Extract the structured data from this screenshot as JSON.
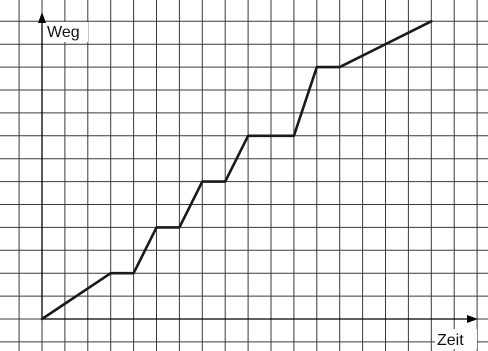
{
  "chart_data": {
    "type": "line",
    "title": "",
    "xlabel": "Zeit",
    "ylabel": "Weg",
    "grid": true,
    "xlim": [
      -1.5,
      19.5
    ],
    "ylim": [
      -1.1,
      13.5
    ],
    "series": [
      {
        "points": [
          [
            0,
            0
          ],
          [
            3,
            2
          ],
          [
            4,
            2
          ],
          [
            5,
            4
          ],
          [
            6,
            4
          ],
          [
            7,
            6
          ],
          [
            8,
            6
          ],
          [
            9,
            8
          ],
          [
            11,
            8
          ],
          [
            12,
            11
          ],
          [
            13,
            11
          ],
          [
            17,
            13
          ]
        ]
      }
    ],
    "colors": {
      "line": "#1a1a1a",
      "grid": "#3a3a3a",
      "axis": "#000000"
    }
  }
}
